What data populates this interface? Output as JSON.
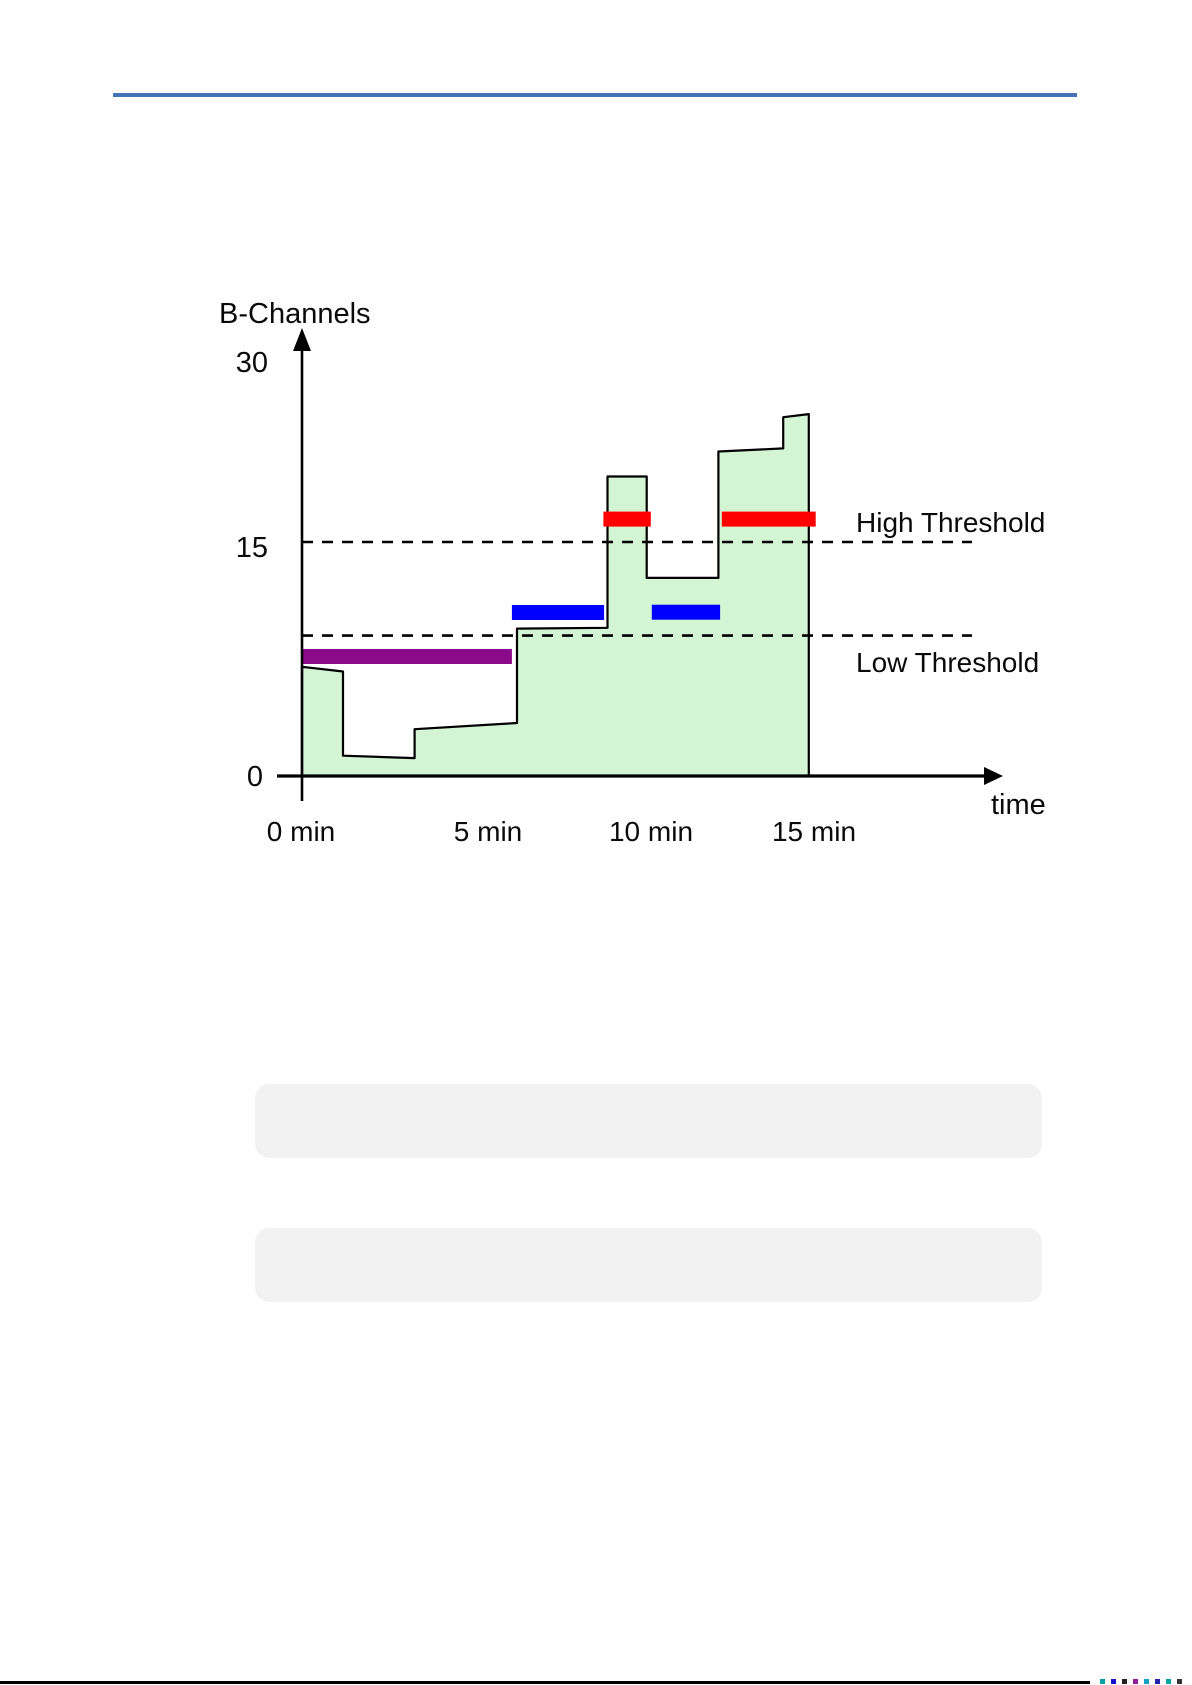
{
  "page": {
    "top_rule_color": "#4573B7",
    "bottom_rule_color": "#000000",
    "answer_box_color": "#F2F2F2",
    "bottom_specks": [
      "#00A3A3",
      "#1414CC",
      "#222222",
      "#951B9B",
      "#12A1C4",
      "#2424AA",
      "#00A3A3",
      "#333333"
    ]
  },
  "chart_data": {
    "type": "area",
    "title": "",
    "ylabel": "B-Channels",
    "xlabel": "time",
    "y_tick_labels": [
      "30",
      "15",
      "0"
    ],
    "y_tick_values": [
      30,
      15,
      0
    ],
    "x_tick_labels": [
      "0 min",
      "5 min",
      "10 min",
      "15 min"
    ],
    "x_tick_minutes": [
      0,
      5,
      10,
      15
    ],
    "ylim": [
      0,
      30
    ],
    "xlim_minutes": [
      0,
      20
    ],
    "grid": false,
    "legend": "none",
    "series": [
      {
        "name": "occupied-b-channels",
        "fill": "#D3F5D3",
        "stroke": "#000000",
        "points_time_value": [
          [
            0,
            0
          ],
          [
            0,
            7.0
          ],
          [
            1.2,
            6.7
          ],
          [
            1.2,
            1.3
          ],
          [
            3.3,
            1.15
          ],
          [
            3.3,
            3.0
          ],
          [
            6.3,
            3.4
          ],
          [
            6.3,
            9.45
          ],
          [
            8.95,
            9.5
          ],
          [
            8.95,
            19.2
          ],
          [
            10.1,
            19.2
          ],
          [
            10.1,
            12.7
          ],
          [
            12.2,
            12.7
          ],
          [
            12.2,
            20.8
          ],
          [
            14.1,
            21.0
          ],
          [
            14.1,
            23.0
          ],
          [
            14.85,
            23.2
          ],
          [
            14.85,
            0
          ]
        ]
      }
    ],
    "thresholds": [
      {
        "label": "High Threshold",
        "value": 15
      },
      {
        "label": "Low Threshold",
        "value": 9
      }
    ],
    "markers": [
      {
        "name": "below-low-threshold-bar",
        "color": "#8A0A8A",
        "level": 7.66,
        "t_start": 0.0,
        "t_end": 6.15
      },
      {
        "name": "between-thresholds-bar-1",
        "color": "#0000FF",
        "level": 10.48,
        "t_start": 6.15,
        "t_end": 8.85
      },
      {
        "name": "above-high-threshold-bar-1",
        "color": "#FF0000",
        "level": 16.47,
        "t_start": 8.83,
        "t_end": 10.22
      },
      {
        "name": "between-thresholds-bar-2",
        "color": "#0000FF",
        "level": 10.5,
        "t_start": 10.25,
        "t_end": 12.25
      },
      {
        "name": "above-high-threshold-bar-2",
        "color": "#FF0000",
        "level": 16.47,
        "t_start": 12.3,
        "t_end": 15.05
      }
    ]
  }
}
